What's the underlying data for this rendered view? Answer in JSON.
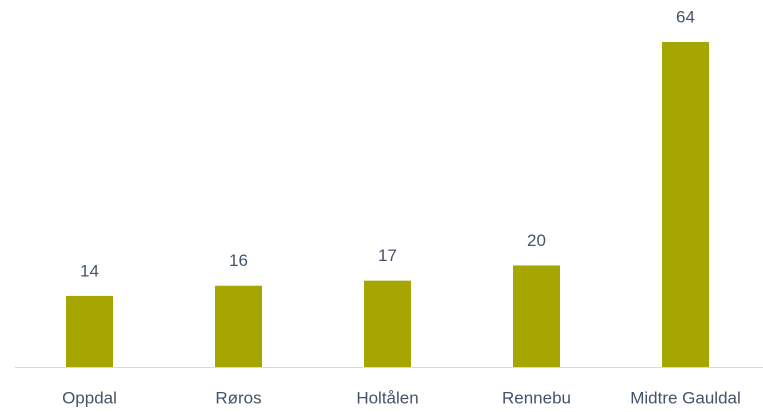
{
  "chart_data": {
    "type": "bar",
    "categories": [
      "Oppdal",
      "Røros",
      "Holtålen",
      "Rennebu",
      "Midtre Gauldal"
    ],
    "values": [
      14,
      16,
      17,
      20,
      64
    ],
    "color": "#a5a600"
  }
}
